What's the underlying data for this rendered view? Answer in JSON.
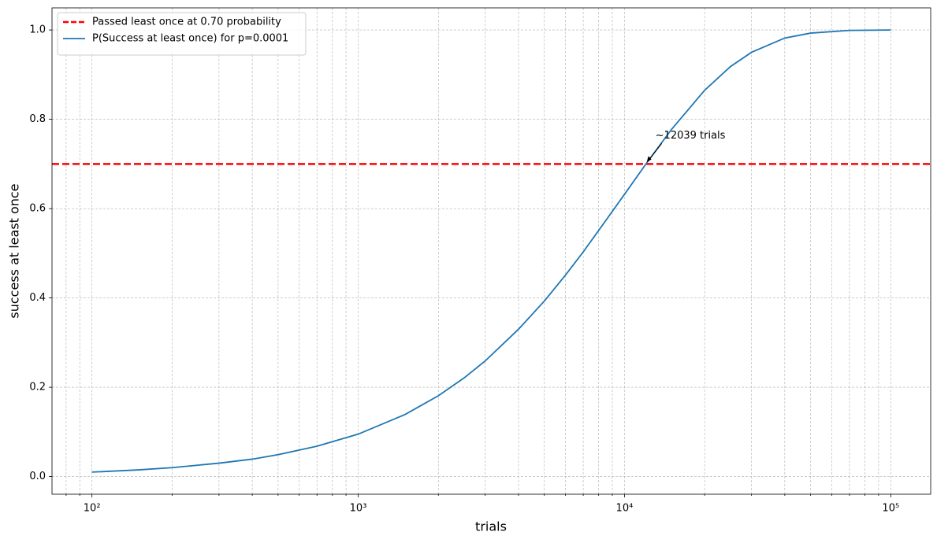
{
  "chart_data": {
    "type": "line",
    "xlabel": "trials",
    "ylabel": "success at least once",
    "xscale": "log",
    "grid": true,
    "legend": "upper left",
    "xlim": [
      70.8,
      141254
    ],
    "ylim": [
      -0.0395,
      1.0495
    ],
    "xticks": [
      {
        "value": 100,
        "label": "10²"
      },
      {
        "value": 1000,
        "label": "10³"
      },
      {
        "value": 10000,
        "label": "10⁴"
      },
      {
        "value": 100000,
        "label": "10⁵"
      }
    ],
    "xminorticks": [
      80,
      90,
      200,
      300,
      400,
      500,
      600,
      700,
      800,
      900,
      2000,
      3000,
      4000,
      5000,
      6000,
      7000,
      8000,
      9000,
      20000,
      30000,
      40000,
      50000,
      60000,
      70000,
      80000,
      90000
    ],
    "yticks": [
      {
        "value": 0,
        "label": "0.0"
      },
      0.2,
      0.4,
      0.6,
      0.8,
      {
        "value": 1,
        "label": "1.0"
      }
    ],
    "hlines": [
      {
        "name": "Passed least once at 0.70 probability",
        "color": "#ff0000",
        "style": "dashed",
        "value": 0.7
      }
    ],
    "x": [
      100,
      150,
      200,
      300,
      400,
      500,
      700,
      1000,
      1500,
      2000,
      2500,
      3000,
      4000,
      5000,
      6000,
      7000,
      8500,
      10000,
      12039,
      15000,
      20000,
      25000,
      30000,
      40000,
      50000,
      70000,
      100000
    ],
    "series": [
      {
        "name": "P(Success at least once) for p=0.0001",
        "color": "#1f77b4",
        "values": [
          0.01,
          0.015,
          0.02,
          0.03,
          0.039,
          0.049,
          0.068,
          0.095,
          0.139,
          0.181,
          0.221,
          0.259,
          0.33,
          0.393,
          0.451,
          0.503,
          0.573,
          0.632,
          0.7,
          0.777,
          0.865,
          0.918,
          0.95,
          0.982,
          0.993,
          0.999,
          1.0
        ]
      }
    ],
    "annotation": {
      "text": "~12039 trials",
      "x": 12039,
      "y": 0.7
    }
  }
}
